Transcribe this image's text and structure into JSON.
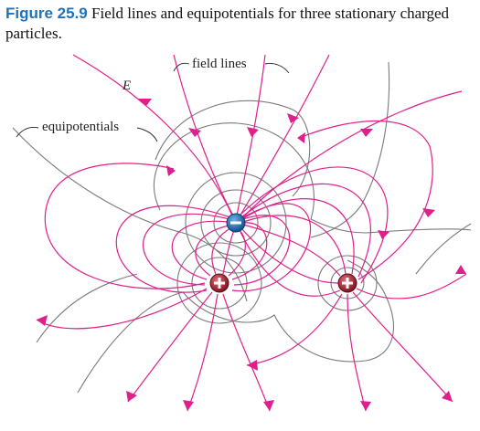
{
  "caption": {
    "figure_number": "Figure 25.9",
    "text": "Field lines and equipotentials for three stationary charged particles."
  },
  "labels": {
    "field_lines": "field lines",
    "equipotentials": "equipotentials",
    "e_field": "E"
  },
  "charges": [
    {
      "sign_text": "−",
      "kind": "negative"
    },
    {
      "sign_text": "+",
      "kind": "positive"
    },
    {
      "sign_text": "+",
      "kind": "positive"
    }
  ],
  "colors": {
    "field_line": "#e01f8c",
    "equipotential": "#7a7a7a",
    "negative_charge": "#1e73b8",
    "positive_charge": "#b0232f",
    "figure_number": "#1e73b8"
  }
}
